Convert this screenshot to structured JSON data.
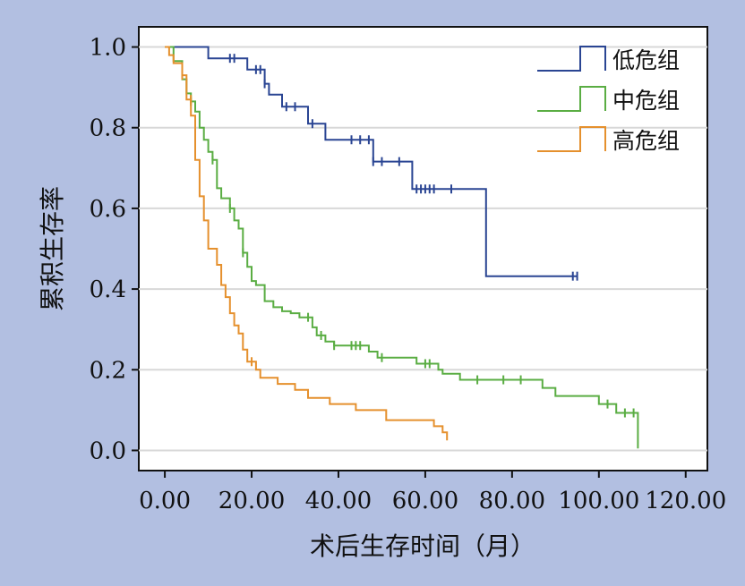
{
  "chart_data": {
    "type": "line",
    "step": true,
    "xlabel": "术后生存时间（月）",
    "ylabel": "累积生存率",
    "xlim": [
      -6,
      125
    ],
    "ylim": [
      -0.05,
      1.05
    ],
    "x_ticks": [
      "0.00",
      "20.00",
      "40.00",
      "60.00",
      "80.00",
      "100.00",
      "120.00"
    ],
    "y_ticks": [
      "0.0",
      "0.2",
      "0.4",
      "0.6",
      "0.8",
      "1.0"
    ],
    "grid": "horizontal",
    "legend_position": "top-right",
    "series": [
      {
        "name": "低危组",
        "color": "#2a4593",
        "points": [
          [
            0,
            1.0
          ],
          [
            10,
            1.0
          ],
          [
            10,
            0.972
          ],
          [
            19,
            0.972
          ],
          [
            19,
            0.944
          ],
          [
            23,
            0.944
          ],
          [
            23,
            0.909
          ],
          [
            24,
            0.909
          ],
          [
            24,
            0.882
          ],
          [
            27,
            0.882
          ],
          [
            27,
            0.852
          ],
          [
            33,
            0.852
          ],
          [
            33,
            0.81
          ],
          [
            37,
            0.81
          ],
          [
            37,
            0.77
          ],
          [
            48,
            0.77
          ],
          [
            48,
            0.716
          ],
          [
            57,
            0.716
          ],
          [
            57,
            0.648
          ],
          [
            74,
            0.648
          ],
          [
            74,
            0.432
          ],
          [
            95,
            0.432
          ]
        ],
        "censored": [
          [
            15,
            0.972
          ],
          [
            16,
            0.972
          ],
          [
            21,
            0.944
          ],
          [
            22,
            0.944
          ],
          [
            23,
            0.909
          ],
          [
            28,
            0.852
          ],
          [
            30,
            0.852
          ],
          [
            34,
            0.81
          ],
          [
            43,
            0.77
          ],
          [
            45,
            0.77
          ],
          [
            47,
            0.77
          ],
          [
            48,
            0.716
          ],
          [
            50,
            0.716
          ],
          [
            54,
            0.716
          ],
          [
            58,
            0.648
          ],
          [
            59,
            0.648
          ],
          [
            60,
            0.648
          ],
          [
            61,
            0.648
          ],
          [
            62,
            0.648
          ],
          [
            66,
            0.648
          ],
          [
            94,
            0.432
          ],
          [
            95,
            0.432
          ]
        ]
      },
      {
        "name": "中危组",
        "color": "#5aad43",
        "points": [
          [
            0,
            1.0
          ],
          [
            2,
            1.0
          ],
          [
            2,
            0.965
          ],
          [
            4,
            0.965
          ],
          [
            4,
            0.92
          ],
          [
            5,
            0.92
          ],
          [
            5,
            0.885
          ],
          [
            6,
            0.885
          ],
          [
            6,
            0.865
          ],
          [
            7,
            0.865
          ],
          [
            7,
            0.84
          ],
          [
            8,
            0.84
          ],
          [
            8,
            0.8
          ],
          [
            9,
            0.8
          ],
          [
            9,
            0.77
          ],
          [
            10,
            0.77
          ],
          [
            10,
            0.74
          ],
          [
            11,
            0.74
          ],
          [
            11,
            0.72
          ],
          [
            12,
            0.72
          ],
          [
            12,
            0.65
          ],
          [
            13,
            0.65
          ],
          [
            13,
            0.625
          ],
          [
            15,
            0.625
          ],
          [
            15,
            0.6
          ],
          [
            16,
            0.6
          ],
          [
            16,
            0.57
          ],
          [
            17,
            0.57
          ],
          [
            17,
            0.55
          ],
          [
            18,
            0.55
          ],
          [
            18,
            0.49
          ],
          [
            19,
            0.49
          ],
          [
            19,
            0.455
          ],
          [
            20,
            0.455
          ],
          [
            20,
            0.42
          ],
          [
            21,
            0.42
          ],
          [
            21,
            0.41
          ],
          [
            23,
            0.41
          ],
          [
            23,
            0.37
          ],
          [
            25,
            0.37
          ],
          [
            25,
            0.355
          ],
          [
            27,
            0.355
          ],
          [
            27,
            0.345
          ],
          [
            29,
            0.345
          ],
          [
            29,
            0.34
          ],
          [
            31,
            0.34
          ],
          [
            31,
            0.33
          ],
          [
            34,
            0.33
          ],
          [
            34,
            0.305
          ],
          [
            35,
            0.305
          ],
          [
            35,
            0.285
          ],
          [
            37,
            0.285
          ],
          [
            37,
            0.27
          ],
          [
            39,
            0.27
          ],
          [
            39,
            0.26
          ],
          [
            47,
            0.26
          ],
          [
            47,
            0.245
          ],
          [
            49,
            0.245
          ],
          [
            49,
            0.23
          ],
          [
            58,
            0.23
          ],
          [
            58,
            0.215
          ],
          [
            63,
            0.215
          ],
          [
            63,
            0.2
          ],
          [
            64,
            0.2
          ],
          [
            64,
            0.19
          ],
          [
            68,
            0.19
          ],
          [
            68,
            0.175
          ],
          [
            87,
            0.175
          ],
          [
            87,
            0.155
          ],
          [
            90,
            0.155
          ],
          [
            90,
            0.135
          ],
          [
            100,
            0.135
          ],
          [
            100,
            0.115
          ],
          [
            104,
            0.115
          ],
          [
            104,
            0.093
          ],
          [
            109,
            0.093
          ],
          [
            109,
            0.005
          ]
        ],
        "censored": [
          [
            6,
            0.865
          ],
          [
            11,
            0.72
          ],
          [
            15,
            0.6
          ],
          [
            18,
            0.49
          ],
          [
            33,
            0.33
          ],
          [
            36,
            0.285
          ],
          [
            39,
            0.26
          ],
          [
            43,
            0.26
          ],
          [
            44,
            0.26
          ],
          [
            45,
            0.26
          ],
          [
            50,
            0.23
          ],
          [
            60,
            0.215
          ],
          [
            61,
            0.215
          ],
          [
            72,
            0.175
          ],
          [
            78,
            0.175
          ],
          [
            82,
            0.175
          ],
          [
            102,
            0.115
          ],
          [
            106,
            0.093
          ],
          [
            108,
            0.093
          ]
        ]
      },
      {
        "name": "高危组",
        "color": "#e5902d",
        "points": [
          [
            0,
            1.0
          ],
          [
            1,
            1.0
          ],
          [
            1,
            0.98
          ],
          [
            2,
            0.98
          ],
          [
            2,
            0.96
          ],
          [
            4,
            0.96
          ],
          [
            4,
            0.93
          ],
          [
            5,
            0.93
          ],
          [
            5,
            0.87
          ],
          [
            6,
            0.87
          ],
          [
            6,
            0.83
          ],
          [
            7,
            0.83
          ],
          [
            7,
            0.72
          ],
          [
            8,
            0.72
          ],
          [
            8,
            0.63
          ],
          [
            9,
            0.63
          ],
          [
            9,
            0.57
          ],
          [
            10,
            0.57
          ],
          [
            10,
            0.5
          ],
          [
            12,
            0.5
          ],
          [
            12,
            0.46
          ],
          [
            13,
            0.46
          ],
          [
            13,
            0.41
          ],
          [
            14,
            0.41
          ],
          [
            14,
            0.38
          ],
          [
            15,
            0.38
          ],
          [
            15,
            0.34
          ],
          [
            16,
            0.34
          ],
          [
            16,
            0.31
          ],
          [
            17,
            0.31
          ],
          [
            17,
            0.29
          ],
          [
            18,
            0.29
          ],
          [
            18,
            0.25
          ],
          [
            19,
            0.25
          ],
          [
            19,
            0.22
          ],
          [
            21,
            0.22
          ],
          [
            21,
            0.2
          ],
          [
            22,
            0.2
          ],
          [
            22,
            0.18
          ],
          [
            26,
            0.18
          ],
          [
            26,
            0.165
          ],
          [
            30,
            0.165
          ],
          [
            30,
            0.15
          ],
          [
            33,
            0.15
          ],
          [
            33,
            0.13
          ],
          [
            38,
            0.13
          ],
          [
            38,
            0.115
          ],
          [
            44,
            0.115
          ],
          [
            44,
            0.1
          ],
          [
            51,
            0.1
          ],
          [
            51,
            0.075
          ],
          [
            62,
            0.075
          ],
          [
            62,
            0.06
          ],
          [
            64,
            0.06
          ],
          [
            64,
            0.045
          ],
          [
            65,
            0.045
          ],
          [
            65,
            0.025
          ]
        ],
        "censored": [
          [
            4,
            0.93
          ],
          [
            6,
            0.87
          ],
          [
            20,
            0.22
          ]
        ]
      }
    ]
  }
}
